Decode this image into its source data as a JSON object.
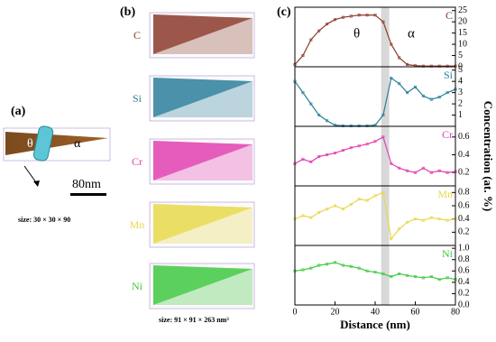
{
  "panels": {
    "a": {
      "label": "(a)",
      "phase_left": "θ",
      "phase_right": "α",
      "scale_bar": "80nm",
      "size": "size:  30  ×  30  ×  90"
    },
    "b": {
      "label": "(b)",
      "elements": [
        "C",
        "Si",
        "Cr",
        "Mn",
        "Ni"
      ],
      "size": "size: 91 × 91 × 263 nm³"
    },
    "c": {
      "label": "(c)",
      "y_label": "Concentration (at. %)",
      "annotations": [
        "θ",
        "α"
      ]
    }
  },
  "chart_data": [
    {
      "type": "line",
      "x": [
        0,
        4,
        8,
        12,
        16,
        20,
        24,
        28,
        32,
        36,
        40,
        44,
        48,
        52,
        56,
        60,
        64,
        68,
        72,
        76,
        80
      ],
      "series": [
        {
          "name": "C",
          "color": "#8b3a2a",
          "values": [
            1,
            5,
            12,
            16,
            19,
            21,
            22,
            22.5,
            23,
            23,
            23,
            20,
            10,
            4,
            1,
            0.5,
            0.3,
            0.3,
            0.3,
            0.3,
            0.3
          ]
        }
      ],
      "xlim": [
        0,
        80
      ],
      "ylim": [
        0,
        26.5
      ],
      "yticks": [
        0,
        5,
        10,
        15,
        20,
        25
      ],
      "shaded_range": [
        43,
        47
      ]
    },
    {
      "type": "line",
      "x": [
        0,
        4,
        8,
        12,
        16,
        20,
        24,
        28,
        32,
        36,
        40,
        44,
        48,
        52,
        56,
        60,
        64,
        68,
        72,
        76,
        80
      ],
      "series": [
        {
          "name": "Si",
          "color": "#2a7e9a",
          "values": [
            4,
            3,
            2,
            1,
            0.5,
            0.1,
            0.05,
            0.05,
            0.05,
            0.05,
            0.1,
            1,
            4.3,
            3.8,
            3,
            3.5,
            2.7,
            2.4,
            2.6,
            3,
            3.3
          ]
        }
      ],
      "xlim": [
        0,
        80
      ],
      "ylim": [
        0,
        5.3
      ],
      "yticks": [
        1,
        2,
        3,
        4,
        5
      ],
      "shaded_range": [
        43,
        47
      ]
    },
    {
      "type": "line",
      "x": [
        0,
        4,
        8,
        12,
        16,
        20,
        24,
        28,
        32,
        36,
        40,
        44,
        48,
        52,
        56,
        60,
        64,
        68,
        72,
        76,
        80
      ],
      "series": [
        {
          "name": "Cr",
          "color": "#e040b0",
          "values": [
            0.3,
            0.35,
            0.32,
            0.38,
            0.4,
            0.42,
            0.45,
            0.48,
            0.5,
            0.52,
            0.55,
            0.6,
            0.3,
            0.25,
            0.22,
            0.2,
            0.25,
            0.2,
            0.22,
            0.2,
            0.21
          ]
        }
      ],
      "xlim": [
        0,
        80
      ],
      "ylim": [
        0.05,
        0.72
      ],
      "yticks": [
        0.2,
        0.4,
        0.6
      ],
      "shaded_range": [
        43,
        47
      ]
    },
    {
      "type": "line",
      "x": [
        0,
        4,
        8,
        12,
        16,
        20,
        24,
        28,
        32,
        36,
        40,
        44,
        48,
        52,
        56,
        60,
        64,
        68,
        72,
        76,
        80
      ],
      "series": [
        {
          "name": "Mn",
          "color": "#e8d84a",
          "values": [
            0.4,
            0.45,
            0.42,
            0.5,
            0.55,
            0.6,
            0.55,
            0.62,
            0.7,
            0.68,
            0.75,
            0.8,
            0.1,
            0.25,
            0.35,
            0.4,
            0.38,
            0.42,
            0.4,
            0.38,
            0.4
          ]
        }
      ],
      "xlim": [
        0,
        80
      ],
      "ylim": [
        0,
        0.9
      ],
      "yticks": [
        0.2,
        0.4,
        0.6,
        0.8
      ],
      "shaded_range": [
        43,
        47
      ]
    },
    {
      "type": "line",
      "x": [
        0,
        4,
        8,
        12,
        16,
        20,
        24,
        28,
        32,
        36,
        40,
        44,
        48,
        52,
        56,
        60,
        64,
        68,
        72,
        76,
        80
      ],
      "series": [
        {
          "name": "Ni",
          "color": "#40c840",
          "values": [
            0.6,
            0.62,
            0.65,
            0.7,
            0.72,
            0.75,
            0.7,
            0.68,
            0.65,
            0.6,
            0.58,
            0.55,
            0.5,
            0.55,
            0.52,
            0.5,
            0.48,
            0.5,
            0.45,
            0.48,
            0.45
          ]
        }
      ],
      "xlim": [
        0,
        80
      ],
      "ylim": [
        0,
        1.05
      ],
      "yticks": [
        {
          "value": 0,
          "label": "0.0"
        },
        0.2,
        0.4,
        0.6,
        0.8,
        {
          "value": 1,
          "label": "1.0"
        }
      ],
      "xticks": [
        0,
        20,
        40,
        60,
        80
      ],
      "x_label": "Distance (nm)",
      "shaded_range": [
        43,
        47
      ]
    }
  ]
}
